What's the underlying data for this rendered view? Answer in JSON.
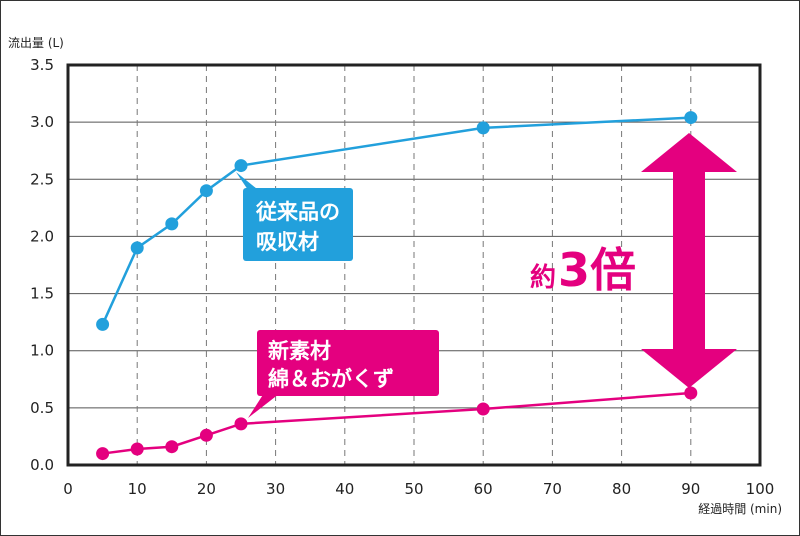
{
  "chart_data": {
    "type": "line",
    "xlabel": "経過時間 (min)",
    "ylabel": "流出量 (L)",
    "xlim": [
      0,
      100
    ],
    "ylim": [
      0,
      3.5
    ],
    "xticks": [
      0,
      10,
      20,
      30,
      40,
      50,
      60,
      70,
      80,
      90,
      100
    ],
    "yticks": [
      "0.0",
      "0.5",
      "1.0",
      "1.5",
      "2.0",
      "2.5",
      "3.0",
      "3.5"
    ],
    "grid": true,
    "series": [
      {
        "key": "conventional",
        "color": "#22a0dc",
        "x": [
          5,
          10,
          15,
          20,
          25,
          60,
          90
        ],
        "y": [
          1.23,
          1.9,
          2.11,
          2.4,
          2.62,
          2.95,
          3.04
        ]
      },
      {
        "key": "new",
        "color": "#e4007f",
        "x": [
          5,
          10,
          15,
          20,
          25,
          60,
          90
        ],
        "y": [
          0.1,
          0.14,
          0.16,
          0.26,
          0.36,
          0.49,
          0.63
        ]
      }
    ],
    "annotations": {
      "conventional_line1": "従来品の",
      "conventional_line2": "吸収材",
      "new_line1": "新素材",
      "new_line2": "綿＆おがくず",
      "ratio_prefix": "約",
      "ratio_value": "3倍"
    }
  }
}
